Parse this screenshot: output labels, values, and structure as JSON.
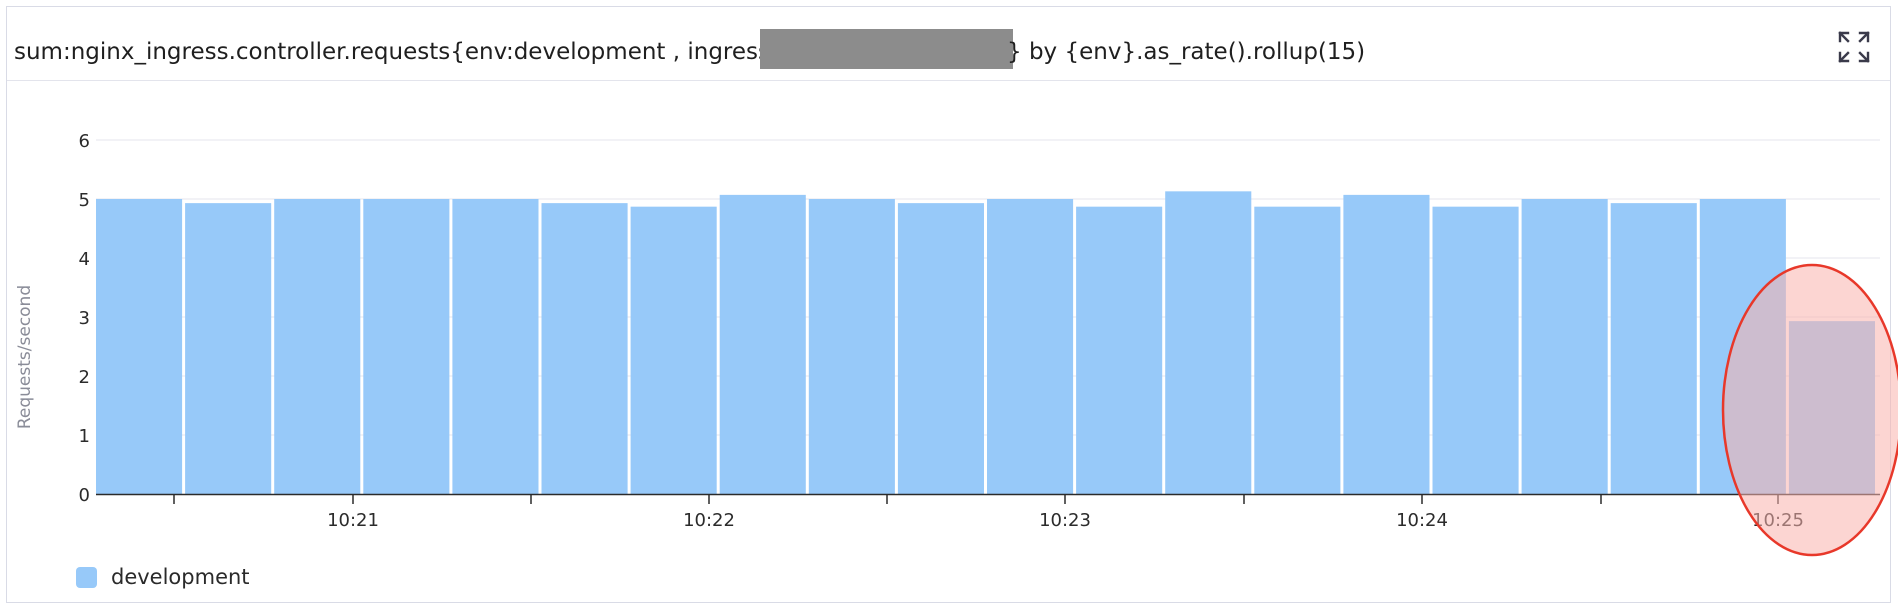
{
  "widget": {
    "title_before": "sum:nginx_ingress.controller.requests{env:development , ingress",
    "title_after": "} by {env}.as_rate().rollup(15)",
    "expand_icon": "expand-icon"
  },
  "chart_data": {
    "type": "bar",
    "ylabel": "Requests/second",
    "xlabel": "",
    "ylim": [
      0,
      6
    ],
    "yticks": [
      "0",
      "1",
      "2",
      "3",
      "4",
      "5",
      "6"
    ],
    "xticks": [
      "10:21",
      "10:22",
      "10:23",
      "10:24",
      "10:25"
    ],
    "grid": true,
    "series": [
      {
        "name": "development",
        "color": "#97c9f9",
        "values": [
          5.0,
          4.93,
          5.0,
          5.0,
          5.0,
          4.93,
          4.87,
          5.07,
          5.0,
          4.93,
          5.0,
          4.87,
          5.13,
          4.87,
          5.07,
          4.87,
          5.0,
          4.93,
          5.0,
          2.93
        ]
      }
    ],
    "highlight": {
      "shape": "ellipse",
      "color": "#e8382a",
      "fill": "#f9b3ad",
      "target": "last bar"
    },
    "legend": {
      "position": "bottom-left",
      "entries": [
        "development"
      ]
    }
  }
}
